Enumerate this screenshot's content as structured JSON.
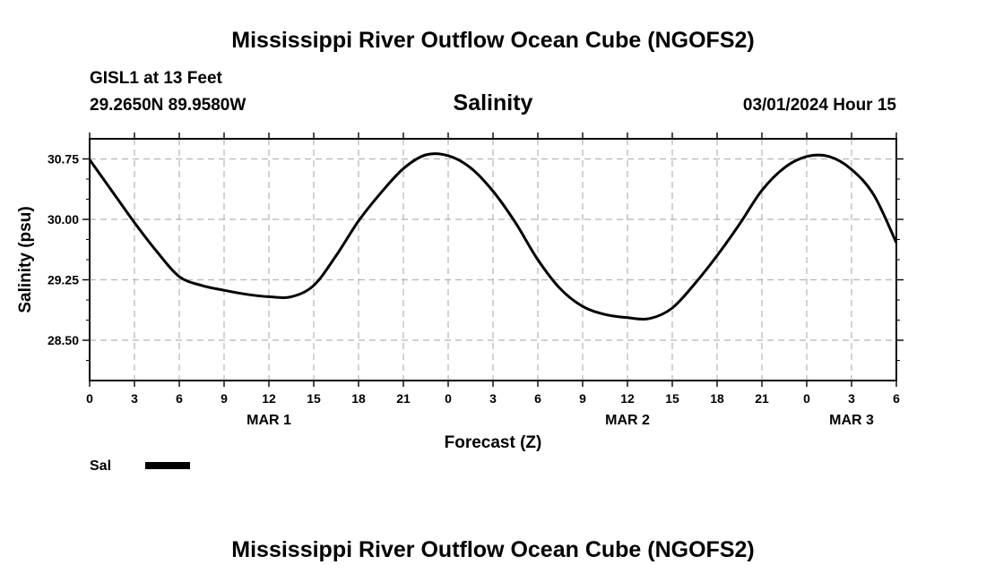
{
  "page": {
    "top_title": "Mississippi River Outflow Ocean Cube (NGOFS2)",
    "bottom_title": "Mississippi River Outflow Ocean Cube (NGOFS2)",
    "station": "GISL1 at 13 Feet",
    "coords": "29.2650N  89.9580W",
    "timestamp": "03/01/2024 Hour 15"
  },
  "chart_data": {
    "type": "line",
    "title": "Salinity",
    "xlabel": "Forecast (Z)",
    "ylabel": "Salinity (psu)",
    "ylim": [
      28.0,
      31.0
    ],
    "xlim": [
      0,
      54
    ],
    "y_ticks": [
      28.5,
      29.25,
      30.0,
      30.75
    ],
    "y_tick_labels": [
      "28.50",
      "29.25",
      "30.00",
      "30.75"
    ],
    "x_ticks": [
      0,
      3,
      6,
      9,
      12,
      15,
      18,
      21,
      24,
      27,
      30,
      33,
      36,
      39,
      42,
      45,
      48,
      51,
      54
    ],
    "x_tick_labels": [
      "0",
      "3",
      "6",
      "9",
      "12",
      "15",
      "18",
      "21",
      "0",
      "3",
      "6",
      "9",
      "12",
      "15",
      "18",
      "21",
      "0",
      "3",
      "6"
    ],
    "date_labels": [
      {
        "label": "MAR 1",
        "x": 12
      },
      {
        "label": "MAR 2",
        "x": 36
      },
      {
        "label": "MAR 3",
        "x": 51
      }
    ],
    "grid": true,
    "legend": [
      {
        "name": "Sal",
        "color": "#000000"
      }
    ],
    "series": [
      {
        "name": "Sal",
        "x": [
          0,
          1.5,
          3,
          4.5,
          6,
          7.5,
          9,
          10.5,
          12,
          13.5,
          15,
          16.5,
          18,
          19.5,
          21,
          22.5,
          24,
          25.5,
          27,
          28.5,
          30,
          31.5,
          33,
          34.5,
          36,
          37.5,
          39,
          40.5,
          42,
          43.5,
          45,
          46.5,
          48,
          49.5,
          51,
          52.5,
          54
        ],
        "values": [
          30.74,
          30.35,
          29.96,
          29.6,
          29.29,
          29.18,
          29.12,
          29.07,
          29.04,
          29.04,
          29.18,
          29.55,
          29.98,
          30.33,
          30.63,
          30.8,
          30.79,
          30.64,
          30.35,
          29.96,
          29.5,
          29.14,
          28.92,
          28.82,
          28.78,
          28.77,
          28.9,
          29.2,
          29.55,
          29.94,
          30.36,
          30.64,
          30.78,
          30.78,
          30.62,
          30.3,
          29.71
        ]
      }
    ]
  }
}
